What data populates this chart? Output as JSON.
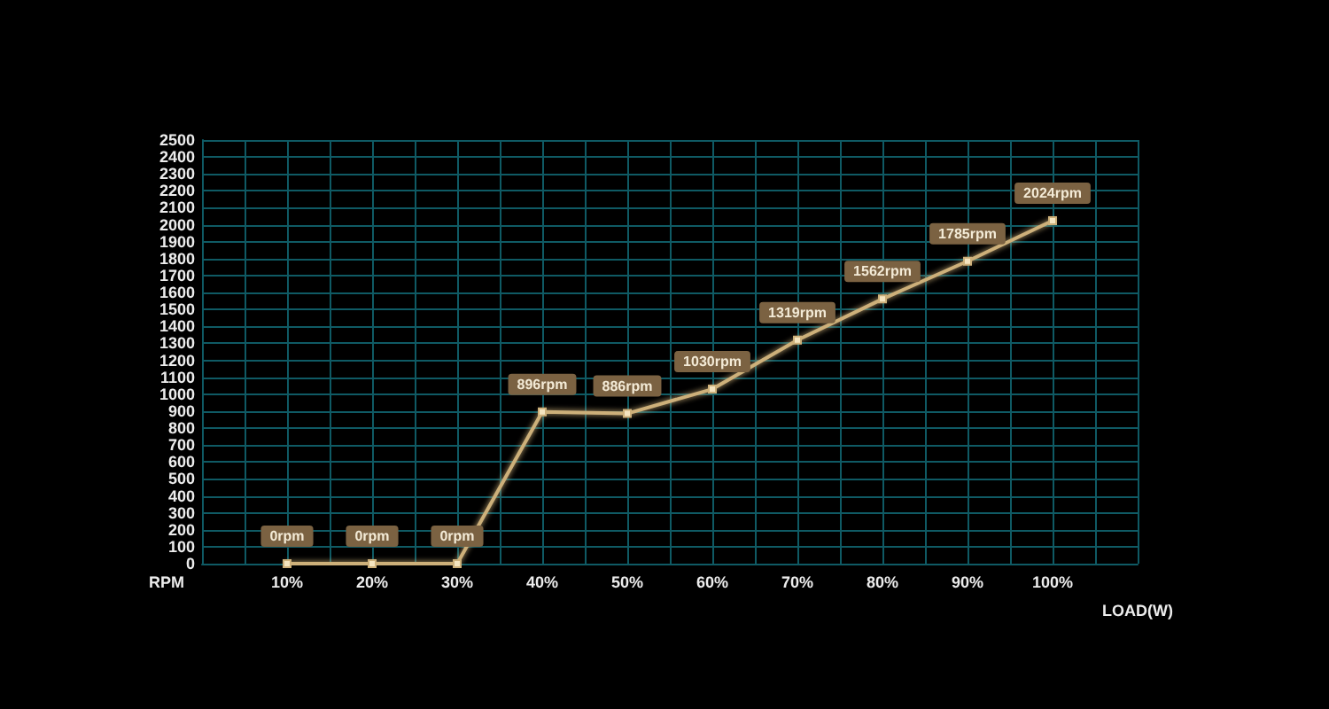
{
  "chart_data": {
    "type": "line",
    "xlabel": "LOAD(W)",
    "ylabel": "RPM",
    "x": [
      10,
      20,
      30,
      40,
      50,
      60,
      70,
      80,
      90,
      100
    ],
    "values": [
      0,
      0,
      0,
      896,
      886,
      1030,
      1319,
      1562,
      1785,
      2024
    ],
    "value_labels": [
      "0rpm",
      "0rpm",
      "0rpm",
      "896rpm",
      "886rpm",
      "1030rpm",
      "1319rpm",
      "1562rpm",
      "1785rpm",
      "2024rpm"
    ],
    "color": "#cdb07a",
    "xlim": [
      0,
      110
    ],
    "xticks": [
      {
        "value": 0,
        "label": null
      },
      {
        "value": 5,
        "label": null
      },
      {
        "value": 10,
        "label": "10%"
      },
      {
        "value": 15,
        "label": null
      },
      {
        "value": 20,
        "label": "20%"
      },
      {
        "value": 25,
        "label": null
      },
      {
        "value": 30,
        "label": "30%"
      },
      {
        "value": 35,
        "label": null
      },
      {
        "value": 40,
        "label": "40%"
      },
      {
        "value": 45,
        "label": null
      },
      {
        "value": 50,
        "label": "50%"
      },
      {
        "value": 55,
        "label": null
      },
      {
        "value": 60,
        "label": "60%"
      },
      {
        "value": 65,
        "label": null
      },
      {
        "value": 70,
        "label": "70%"
      },
      {
        "value": 75,
        "label": null
      },
      {
        "value": 80,
        "label": "80%"
      },
      {
        "value": 85,
        "label": null
      },
      {
        "value": 90,
        "label": "90%"
      },
      {
        "value": 95,
        "label": null
      },
      {
        "value": 100,
        "label": "100%"
      },
      {
        "value": 105,
        "label": null
      },
      {
        "value": 110,
        "label": null
      }
    ],
    "ylim": [
      0,
      2500
    ],
    "yticks": [
      0,
      100,
      200,
      300,
      400,
      500,
      600,
      700,
      800,
      900,
      1000,
      1100,
      1200,
      1300,
      1400,
      1500,
      1600,
      1700,
      1800,
      1900,
      2000,
      2100,
      2200,
      2300,
      2400,
      2500
    ],
    "grid": true,
    "marker": "square",
    "line_style": "solid"
  }
}
